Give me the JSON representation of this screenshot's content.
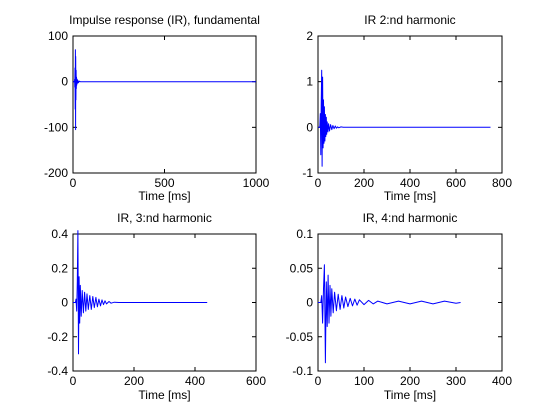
{
  "figure": {
    "background": "#ffffff",
    "line_color": "#0000ff"
  },
  "chart_data": [
    {
      "type": "line",
      "title": "Impulse response (IR), fundamental",
      "xlabel": "Time [ms]",
      "ylabel": "",
      "xlim": [
        0,
        1000
      ],
      "ylim": [
        -200,
        100
      ],
      "xticks": [
        0,
        500,
        1000
      ],
      "yticks": [
        -200,
        -100,
        0,
        100
      ],
      "grid": false,
      "series": [
        {
          "x": [
            0,
            8,
            9,
            10,
            11,
            12,
            13,
            14,
            15,
            16,
            17,
            18,
            19,
            20,
            21,
            22,
            24,
            26,
            28,
            30,
            35,
            40,
            60,
            100,
            1000
          ],
          "y": [
            0,
            0,
            5,
            -12,
            30,
            -60,
            70,
            -105,
            55,
            -40,
            25,
            -15,
            10,
            -8,
            6,
            -5,
            4,
            -3,
            2,
            -2,
            1,
            0,
            0,
            0,
            0
          ]
        }
      ]
    },
    {
      "type": "line",
      "title": "IR 2:nd harmonic",
      "xlabel": "Time [ms]",
      "ylabel": "",
      "xlim": [
        0,
        800
      ],
      "ylim": [
        -1,
        2
      ],
      "xticks": [
        0,
        200,
        400,
        600,
        800
      ],
      "yticks": [
        -1,
        0,
        1,
        2
      ],
      "grid": false,
      "series": [
        {
          "x": [
            0,
            8,
            10,
            12,
            14,
            16,
            18,
            20,
            22,
            24,
            26,
            28,
            30,
            32,
            34,
            36,
            38,
            40,
            43,
            46,
            50,
            55,
            60,
            65,
            70,
            75,
            80,
            85,
            90,
            100,
            110,
            125,
            150,
            750
          ],
          "y": [
            0,
            0,
            0.3,
            -0.6,
            0.5,
            1.25,
            -0.85,
            1.1,
            -0.45,
            0.6,
            -0.35,
            0.45,
            -0.3,
            0.28,
            -0.2,
            0.22,
            -0.15,
            0.12,
            -0.1,
            0.08,
            -0.08,
            0.06,
            -0.05,
            0.04,
            -0.03,
            0.03,
            -0.02,
            0.01,
            -0.01,
            0.01,
            0,
            0,
            0,
            0
          ]
        }
      ]
    },
    {
      "type": "line",
      "title": "IR, 3:nd harmonic",
      "xlabel": "Time [ms]",
      "ylabel": "",
      "xlim": [
        0,
        600
      ],
      "ylim": [
        -0.4,
        0.4
      ],
      "xticks": [
        0,
        200,
        400,
        600
      ],
      "yticks": [
        -0.4,
        -0.2,
        0,
        0.2,
        0.4
      ],
      "grid": false,
      "series": [
        {
          "x": [
            0,
            8,
            10,
            12,
            14,
            16,
            18,
            20,
            22,
            24,
            27,
            30,
            34,
            38,
            42,
            46,
            50,
            55,
            60,
            65,
            70,
            75,
            80,
            85,
            90,
            95,
            100,
            105,
            110,
            118,
            125,
            135,
            150,
            440
          ],
          "y": [
            0,
            0,
            0.02,
            -0.05,
            0.12,
            0.42,
            -0.3,
            0.15,
            -0.12,
            0.1,
            -0.08,
            0.07,
            -0.06,
            0.06,
            -0.05,
            0.05,
            -0.04,
            0.04,
            -0.04,
            0.035,
            -0.03,
            0.03,
            -0.025,
            0.02,
            -0.02,
            0.015,
            -0.012,
            0.01,
            -0.008,
            0.006,
            -0.004,
            0.002,
            0,
            0
          ]
        }
      ]
    },
    {
      "type": "line",
      "title": "IR, 4:nd harmonic",
      "xlabel": "Time [ms]",
      "ylabel": "",
      "xlim": [
        0,
        400
      ],
      "ylim": [
        -0.1,
        0.1
      ],
      "xticks": [
        0,
        100,
        200,
        300,
        400
      ],
      "yticks": [
        -0.1,
        -0.05,
        0,
        0.05,
        0.1
      ],
      "grid": false,
      "series": [
        {
          "x": [
            0,
            6,
            8,
            10,
            12,
            14,
            16,
            18,
            20,
            22,
            24,
            26,
            28,
            30,
            33,
            36,
            40,
            44,
            48,
            52,
            56,
            60,
            65,
            70,
            75,
            80,
            85,
            90,
            100,
            110,
            120,
            130,
            150,
            175,
            200,
            225,
            250,
            275,
            300,
            310
          ],
          "y": [
            0,
            0,
            0.01,
            -0.03,
            0.02,
            0.055,
            -0.088,
            0.03,
            -0.035,
            0.04,
            -0.03,
            0.025,
            -0.02,
            0.02,
            -0.015,
            0.015,
            -0.012,
            0.012,
            -0.01,
            0.01,
            -0.008,
            0.008,
            -0.006,
            0.006,
            -0.005,
            0.005,
            -0.004,
            0.004,
            -0.003,
            0.003,
            -0.002,
            0.002,
            -0.002,
            0.002,
            -0.002,
            0.002,
            -0.002,
            0.002,
            -0.001,
            0
          ]
        }
      ]
    }
  ]
}
